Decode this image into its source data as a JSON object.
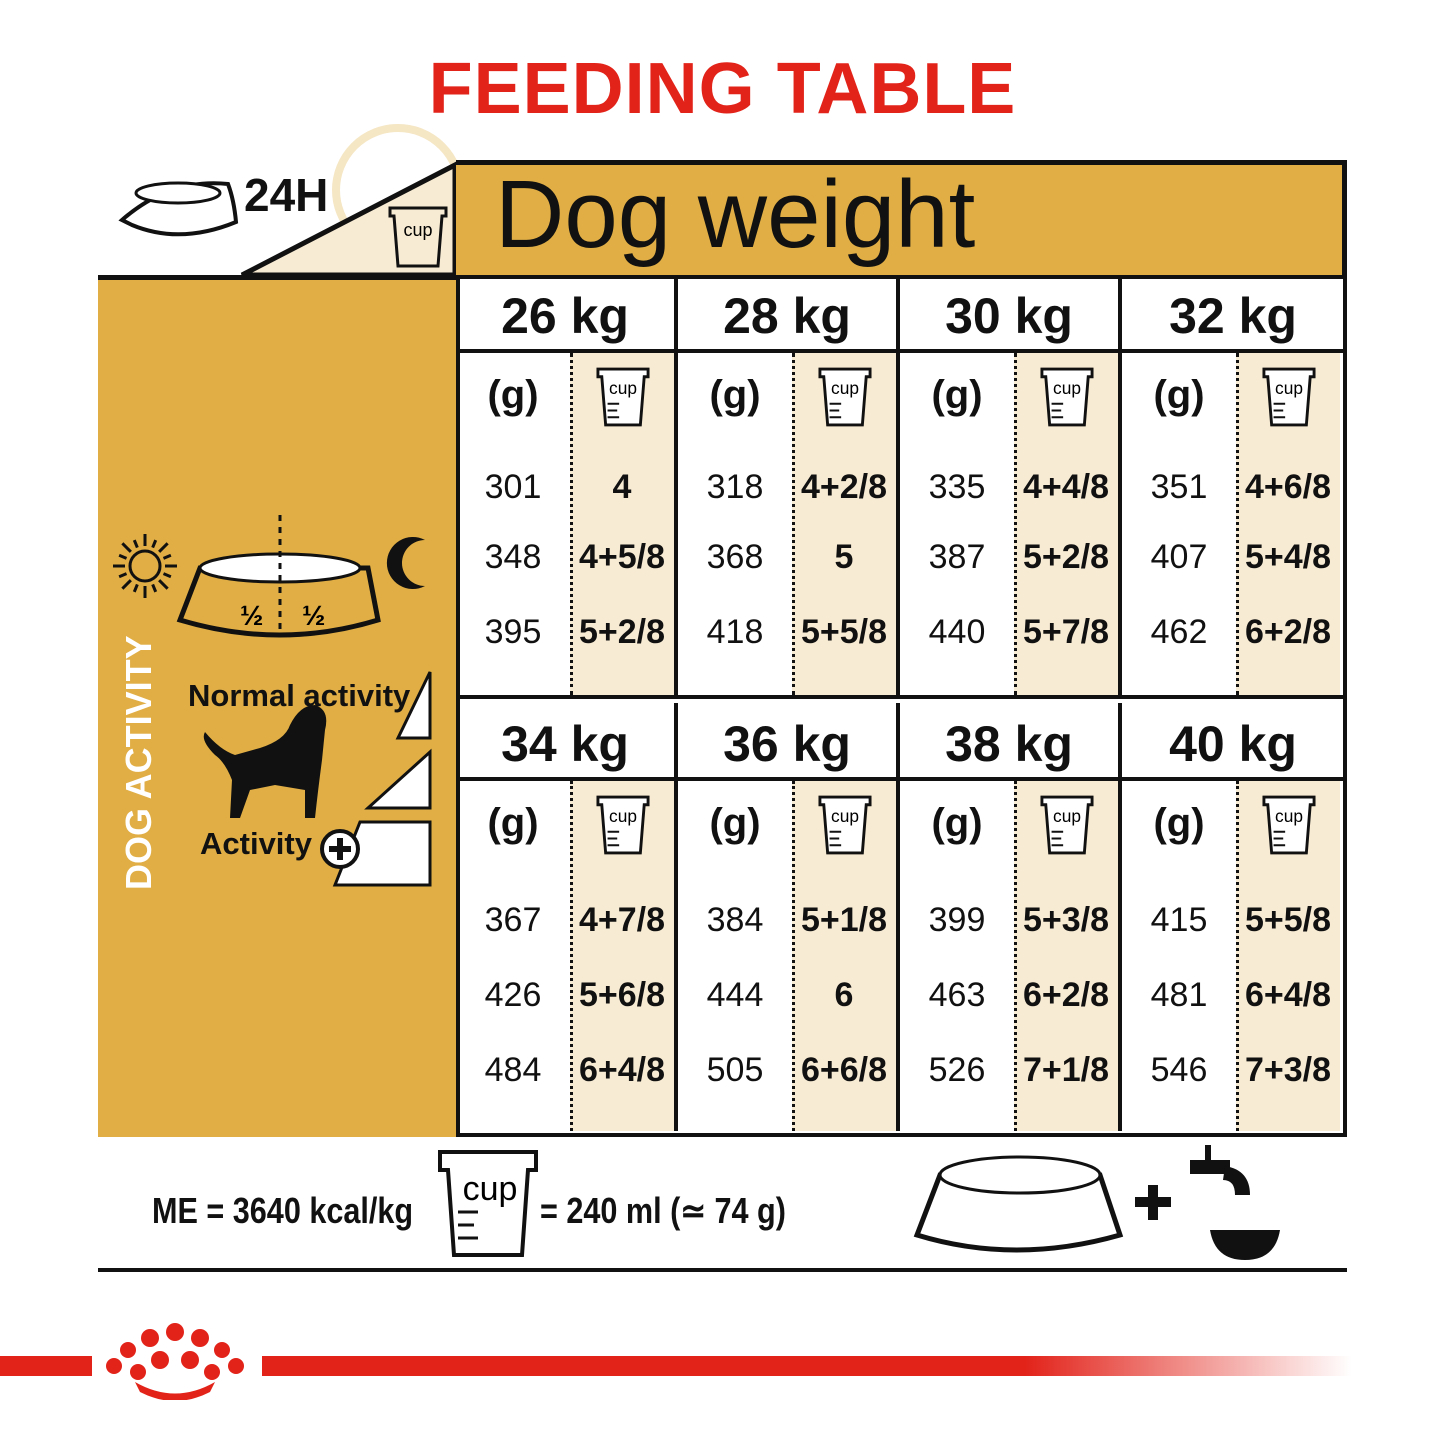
{
  "title": "FEEDING TABLE",
  "header": {
    "duration": "24H",
    "cup_label": "cup",
    "dog_weight": "Dog weight"
  },
  "left_panel": {
    "half_left": "½",
    "half_right": "½",
    "section_label": "DOG ACTIVITY",
    "normal_activity": "Normal activity",
    "activity_plus": "Activity"
  },
  "colors": {
    "red": "#E2231A",
    "gold": "#E0AE45",
    "cream": "#F8EBD3"
  },
  "table": {
    "grams_label": "(g)",
    "cup_label": "cup",
    "columns": [
      {
        "weight": "26 kg",
        "rows": [
          [
            "301",
            "4"
          ],
          [
            "348",
            "4+5/8"
          ],
          [
            "395",
            "5+2/8"
          ]
        ]
      },
      {
        "weight": "28 kg",
        "rows": [
          [
            "318",
            "4+2/8"
          ],
          [
            "368",
            "5"
          ],
          [
            "418",
            "5+5/8"
          ]
        ]
      },
      {
        "weight": "30 kg",
        "rows": [
          [
            "335",
            "4+4/8"
          ],
          [
            "387",
            "5+2/8"
          ],
          [
            "440",
            "5+7/8"
          ]
        ]
      },
      {
        "weight": "32 kg",
        "rows": [
          [
            "351",
            "4+6/8"
          ],
          [
            "407",
            "5+4/8"
          ],
          [
            "462",
            "6+2/8"
          ]
        ]
      },
      {
        "weight": "34 kg",
        "rows": [
          [
            "367",
            "4+7/8"
          ],
          [
            "426",
            "5+6/8"
          ],
          [
            "484",
            "6+4/8"
          ]
        ]
      },
      {
        "weight": "36 kg",
        "rows": [
          [
            "384",
            "5+1/8"
          ],
          [
            "444",
            "6"
          ],
          [
            "505",
            "6+6/8"
          ]
        ]
      },
      {
        "weight": "38 kg",
        "rows": [
          [
            "399",
            "5+3/8"
          ],
          [
            "463",
            "6+2/8"
          ],
          [
            "526",
            "7+1/8"
          ]
        ]
      },
      {
        "weight": "40 kg",
        "rows": [
          [
            "415",
            "5+5/8"
          ],
          [
            "481",
            "6+4/8"
          ],
          [
            "546",
            "7+3/8"
          ]
        ]
      }
    ]
  },
  "footer": {
    "me": "ME = 3640 kcal/kg",
    "cup_label": "cup",
    "cup_equiv": "= 240 ml (≃ 74 g)"
  }
}
